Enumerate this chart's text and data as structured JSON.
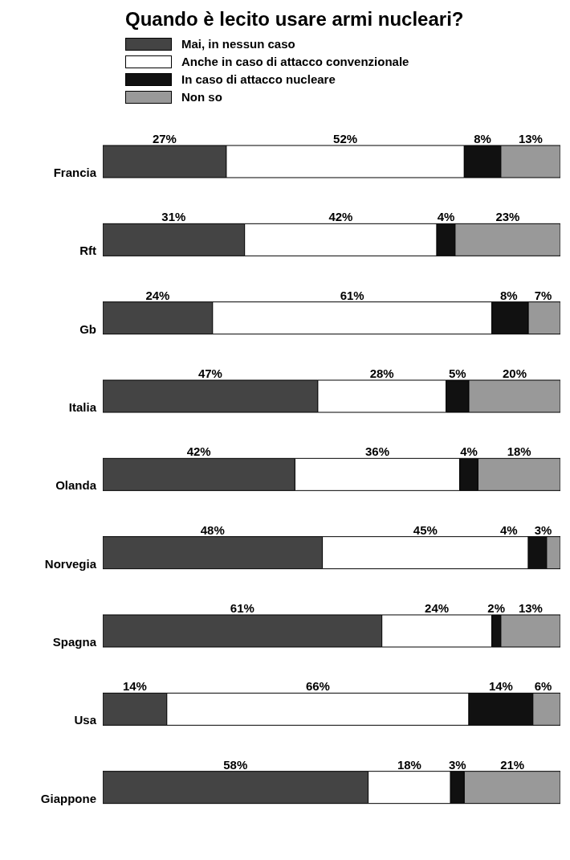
{
  "chart_data": {
    "type": "bar",
    "orientation": "horizontal",
    "stacked": true,
    "title": "Quando è lecito usare armi nucleari?",
    "categories": [
      "Francia",
      "Rft",
      "Gb",
      "Italia",
      "Olanda",
      "Norvegia",
      "Spagna",
      "Usa",
      "Giappone"
    ],
    "tick_labels": "y",
    "grid": false,
    "legend": "top left",
    "series": [
      {
        "name": "Mai, in nessun caso",
        "color": "#444444",
        "values": [
          27,
          31,
          24,
          47,
          42,
          48,
          61,
          14,
          58
        ],
        "value_labels": [
          "27%",
          "31%",
          "24%",
          "47%",
          "42%",
          "48%",
          "61%",
          "14%",
          "58%"
        ]
      },
      {
        "name": "Anche in caso di attacco convenzionale",
        "color": "#ffffff",
        "values": [
          52,
          42,
          61,
          28,
          36,
          45,
          24,
          66,
          18
        ],
        "value_labels": [
          "52%",
          "42%",
          "61%",
          "28%",
          "36%",
          "45%",
          "24%",
          "66%",
          "18%"
        ]
      },
      {
        "name": "In caso di attacco nucleare",
        "color": "#111111",
        "values": [
          8,
          4,
          8,
          5,
          4,
          4,
          2,
          14,
          3
        ],
        "value_labels": [
          "8%",
          "4%",
          "8%",
          "5%",
          "4%",
          "4%",
          "2%",
          "14%",
          "3%"
        ]
      },
      {
        "name": "Non so",
        "color": "#999999",
        "values": [
          13,
          23,
          7,
          20,
          18,
          3,
          13,
          6,
          21
        ],
        "value_labels": [
          "13%",
          "23%",
          "7%",
          "20%",
          "18%",
          "3%",
          "13%",
          "6%",
          "21%"
        ]
      }
    ]
  }
}
